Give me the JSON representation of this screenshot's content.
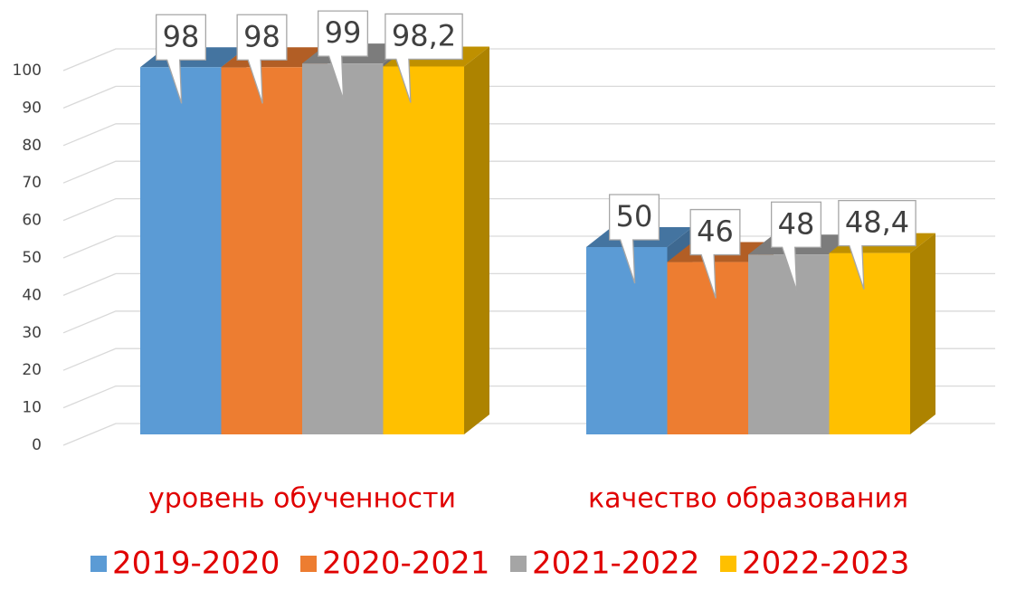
{
  "chart_data": {
    "type": "bar3d",
    "categories": [
      "уровень обученности",
      "качество образования"
    ],
    "series": [
      {
        "name": "2019-2020",
        "color": "#5b9bd5",
        "values": [
          98,
          50
        ]
      },
      {
        "name": "2020-2021",
        "color": "#ed7d31",
        "values": [
          98,
          46
        ]
      },
      {
        "name": "2021-2022",
        "color": "#a5a5a5",
        "values": [
          99,
          48
        ]
      },
      {
        "name": "2022-2023",
        "color": "#ffc000",
        "values": [
          98.2,
          48.4
        ],
        "value_labels": [
          "98,2",
          "48,4"
        ]
      }
    ],
    "ylim": [
      0,
      100
    ],
    "yticks": [
      0,
      10,
      20,
      30,
      40,
      50,
      60,
      70,
      80,
      90,
      100
    ],
    "grid": true,
    "legend": "bottom"
  }
}
